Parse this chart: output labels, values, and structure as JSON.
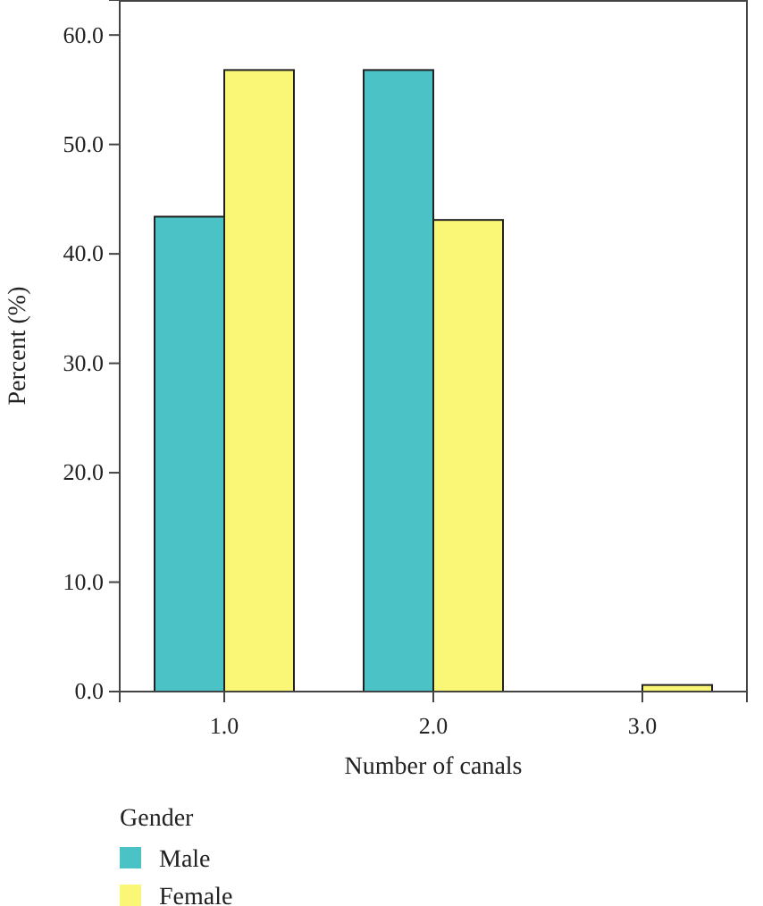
{
  "chart_data": {
    "type": "bar",
    "xlabel": "Number of canals",
    "ylabel": "Percent (%)",
    "legend_title": "Gender",
    "legend": "bottom left",
    "categories": [
      "1.0",
      "2.0",
      "3.0"
    ],
    "series": [
      {
        "name": "Male",
        "color": "#4bc3c6",
        "values": [
          43.4,
          56.8,
          null
        ]
      },
      {
        "name": "Female",
        "color": "#fbf776",
        "values": [
          56.8,
          43.1,
          0.6
        ]
      }
    ],
    "ylim": [
      0,
      63.2
    ],
    "yticks": [
      {
        "value": 0,
        "label": "0.0"
      },
      {
        "value": 10,
        "label": "10.0"
      },
      {
        "value": 20,
        "label": "20.0"
      },
      {
        "value": 30,
        "label": "30.0"
      },
      {
        "value": 40,
        "label": "40.0"
      },
      {
        "value": 50,
        "label": "50.0"
      },
      {
        "value": 60,
        "label": "60.0"
      }
    ]
  }
}
